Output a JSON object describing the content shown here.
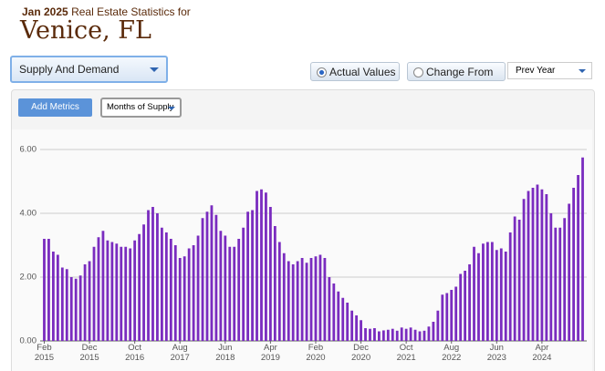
{
  "header": {
    "period": "Jan 2025",
    "subtitle": "Real Estate Statistics for",
    "location": "Venice, FL"
  },
  "controls": {
    "report": "Supply And Demand",
    "actual": "Actual Values",
    "change": "Change From",
    "compare": "Prev Year",
    "add_metrics": "Add Metrics",
    "metric": "Months of Supply"
  },
  "chart_data": {
    "type": "bar",
    "color": "#7a2cbf",
    "grid": true,
    "ylim": [
      0,
      6
    ],
    "yticks": [
      {
        "value": 0,
        "label": "0.00"
      },
      {
        "value": 2,
        "label": "2.00"
      },
      {
        "value": 4,
        "label": "4.00"
      },
      {
        "value": 6,
        "label": "6.00"
      }
    ],
    "categories": [
      "Feb\n2015",
      null,
      null,
      null,
      null,
      null,
      null,
      null,
      null,
      null,
      "Dec\n2015",
      null,
      null,
      null,
      null,
      null,
      null,
      null,
      null,
      null,
      "Oct\n2016",
      null,
      null,
      null,
      null,
      null,
      null,
      null,
      null,
      null,
      "Aug\n2017",
      null,
      null,
      null,
      null,
      null,
      null,
      null,
      null,
      null,
      "Jun\n2018",
      null,
      null,
      null,
      null,
      null,
      null,
      null,
      null,
      null,
      "Apr\n2019",
      null,
      null,
      null,
      null,
      null,
      null,
      null,
      null,
      null,
      "Feb\n2020",
      null,
      null,
      null,
      null,
      null,
      null,
      null,
      null,
      null,
      "Dec\n2020",
      null,
      null,
      null,
      null,
      null,
      null,
      null,
      null,
      null,
      "Oct\n2021",
      null,
      null,
      null,
      null,
      null,
      null,
      null,
      null,
      null,
      "Aug\n2022",
      null,
      null,
      null,
      null,
      null,
      null,
      null,
      null,
      null,
      "Jun\n2023",
      null,
      null,
      null,
      null,
      null,
      null,
      null,
      null,
      null,
      "Apr\n2024",
      null,
      null,
      null,
      null,
      null,
      null,
      null,
      null,
      null
    ],
    "values": [
      3.2,
      3.2,
      2.8,
      2.7,
      2.3,
      2.25,
      2.0,
      1.95,
      2.05,
      2.4,
      2.5,
      2.95,
      3.25,
      3.45,
      3.15,
      3.1,
      3.05,
      2.95,
      2.95,
      2.9,
      3.15,
      3.35,
      3.65,
      4.1,
      4.2,
      4.0,
      3.55,
      3.4,
      3.2,
      3.0,
      2.6,
      2.65,
      2.9,
      3.0,
      3.3,
      3.85,
      4.05,
      4.25,
      3.95,
      3.45,
      3.3,
      2.95,
      2.95,
      3.2,
      3.55,
      4.05,
      4.1,
      4.7,
      4.75,
      4.65,
      4.2,
      3.6,
      3.1,
      2.75,
      2.5,
      2.4,
      2.5,
      2.6,
      2.45,
      2.6,
      2.65,
      2.7,
      2.6,
      2.0,
      1.8,
      1.55,
      1.35,
      1.2,
      0.95,
      0.8,
      0.65,
      0.4,
      0.38,
      0.4,
      0.3,
      0.33,
      0.35,
      0.38,
      0.32,
      0.42,
      0.38,
      0.42,
      0.35,
      0.3,
      0.32,
      0.45,
      0.6,
      0.95,
      1.45,
      1.5,
      1.6,
      1.7,
      2.1,
      2.2,
      2.4,
      2.95,
      2.75,
      3.05,
      3.1,
      3.1,
      2.85,
      2.9,
      2.8,
      3.4,
      3.9,
      3.8,
      4.45,
      4.7,
      4.8,
      4.9,
      4.75,
      4.6,
      4.0,
      3.55,
      3.55,
      3.85,
      4.3,
      4.8,
      5.2,
      5.75
    ]
  }
}
